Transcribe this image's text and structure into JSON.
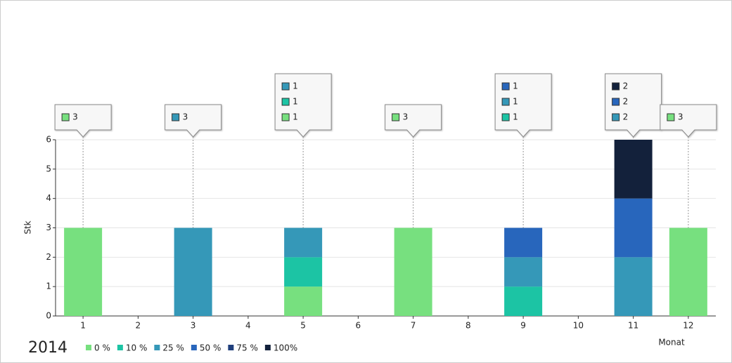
{
  "chart_data": {
    "type": "bar",
    "stacked": true,
    "legend_title": "2014",
    "y_label": "Stk",
    "x_label": "Monat",
    "categories": [
      "1",
      "2",
      "3",
      "4",
      "5",
      "6",
      "7",
      "8",
      "9",
      "10",
      "11",
      "12"
    ],
    "series": [
      {
        "name": "0 %",
        "color": "#77e07f",
        "values": [
          3,
          null,
          null,
          null,
          1,
          null,
          3,
          null,
          null,
          null,
          null,
          3
        ]
      },
      {
        "name": "10 %",
        "color": "#1cc4a4",
        "values": [
          null,
          null,
          null,
          null,
          1,
          null,
          null,
          null,
          1,
          null,
          null,
          null
        ]
      },
      {
        "name": "25 %",
        "color": "#3598b8",
        "values": [
          null,
          null,
          3,
          null,
          1,
          null,
          null,
          null,
          1,
          null,
          2,
          null
        ]
      },
      {
        "name": "50 %",
        "color": "#2866bc",
        "values": [
          null,
          null,
          null,
          null,
          null,
          null,
          null,
          null,
          1,
          null,
          2,
          null
        ]
      },
      {
        "name": "75 %",
        "color": "#1f3f7c",
        "values": [
          null,
          null,
          null,
          null,
          null,
          null,
          null,
          null,
          null,
          null,
          null,
          null
        ]
      },
      {
        "name": "100%",
        "color": "#13213b",
        "values": [
          null,
          null,
          null,
          null,
          null,
          null,
          null,
          null,
          null,
          null,
          2,
          null
        ]
      }
    ],
    "ylim": [
      0,
      6
    ],
    "yticks": [
      0,
      1,
      2,
      3,
      4,
      5,
      6
    ],
    "grid": true
  }
}
